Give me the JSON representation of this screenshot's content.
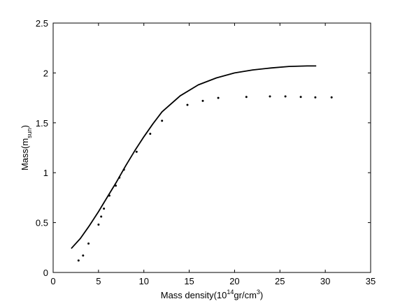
{
  "chart_data": {
    "type": "line",
    "title": "",
    "xlabel": {
      "prefix": "Mass density(10",
      "sup": "14",
      "mid": "gr/cm",
      "sup2": "3",
      "suffix": ")"
    },
    "ylabel": {
      "prefix": "Mass(m",
      "sub": "sun",
      "suffix": ")"
    },
    "xlim": [
      0,
      35
    ],
    "ylim": [
      0,
      2.5
    ],
    "xticks": [
      0,
      5,
      10,
      15,
      20,
      25,
      30,
      35
    ],
    "xtick_labels": [
      "0",
      "5",
      "10",
      "15",
      "20",
      "25",
      "30",
      "35"
    ],
    "yticks": [
      0,
      0.5,
      1,
      1.5,
      2,
      2.5
    ],
    "ytick_labels": [
      "0",
      "0.5",
      "1",
      "1.5",
      "2",
      "2.5"
    ],
    "grid": false,
    "legend": false,
    "colors": {
      "line": "#000000",
      "points": "#000000",
      "axes": "#000000"
    },
    "series": [
      {
        "style": "solid-line",
        "x": [
          2.0,
          3.0,
          4.0,
          5.0,
          6.0,
          7.0,
          8.0,
          9.0,
          10.0,
          11.0,
          12.0,
          14.0,
          16.0,
          18.0,
          20.0,
          22.0,
          24.0,
          26.0,
          28.0,
          29.0
        ],
        "y": [
          0.24,
          0.34,
          0.47,
          0.61,
          0.76,
          0.91,
          1.07,
          1.22,
          1.36,
          1.49,
          1.61,
          1.77,
          1.88,
          1.95,
          2.0,
          2.03,
          2.05,
          2.065,
          2.07,
          2.07
        ]
      },
      {
        "style": "dots",
        "x": [
          2.8,
          3.3,
          3.9,
          5.0,
          5.3,
          5.6,
          6.2,
          6.9,
          7.3,
          7.8,
          9.2,
          10.7,
          12.0,
          14.8,
          16.5,
          18.2,
          21.3,
          23.9,
          25.6,
          27.3,
          28.9,
          30.7
        ],
        "y": [
          0.12,
          0.17,
          0.29,
          0.48,
          0.56,
          0.64,
          0.77,
          0.87,
          0.95,
          1.03,
          1.21,
          1.39,
          1.52,
          1.68,
          1.72,
          1.75,
          1.76,
          1.765,
          1.765,
          1.76,
          1.755,
          1.755
        ]
      }
    ]
  }
}
